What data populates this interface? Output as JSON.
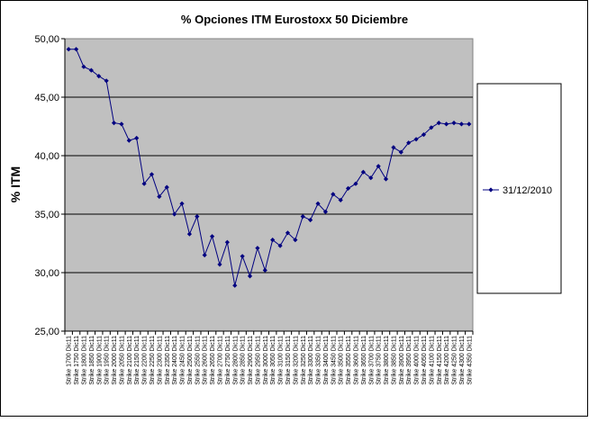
{
  "chart_data": {
    "type": "line",
    "title": "%  Opciones ITM Eurostoxx 50 Diciembre",
    "ylabel": "% ITM",
    "xlabel": "",
    "ylim": [
      25,
      50
    ],
    "yticks": [
      "50,00",
      "45,00",
      "40,00",
      "35,00",
      "30,00",
      "25,00"
    ],
    "grid": true,
    "legend_position": "right",
    "colors": {
      "plot_background": "#c0c0c0",
      "series": "#000080",
      "gridline": "#000000",
      "chart_border": "#000000"
    },
    "categories": [
      "Strike 1700 Dic11",
      "Strike 1750 Dic11",
      "Strike 1800 Dic11",
      "Strike 1850 Dic11",
      "Strike 1900 Dic11",
      "Strike 1950 Dic11",
      "Strike 2000 Dic11",
      "Strike 2050 Dic11",
      "Strike 2100 Dic11",
      "Strike 2150 Dic11",
      "Strike 2200 Dic11",
      "Strike 2250 Dic11",
      "Strike 2300 Dic11",
      "Strike 2350 Dic11",
      "Strike 2400 Dic11",
      "Strike 2450 Dic11",
      "Strike 2500 Dic11",
      "Strike 2550 Dic11",
      "Strike 2600 Dic11",
      "Strike 2650 Dic11",
      "Strike 2700 Dic11",
      "Strike 2750 Dic11",
      "Strike 2800 Dic11",
      "Strike 2850 Dic11",
      "Strike 2900 Dic11",
      "Strike 2950 Dic11",
      "Strike 3000 Dic11",
      "Strike 3050 Dic11",
      "Strike 3100 Dic11",
      "Strike 3150 Dic11",
      "Strike 3200 Dic11",
      "Strike 3250 Dic11",
      "Strike 3300 Dic11",
      "Strike 3350 Dic11",
      "Strike 3400 Dic11",
      "Strike 3450 Dic11",
      "Strike 3500 Dic11",
      "Strike 3550 Dic11",
      "Strike 3600 Dic11",
      "Strike 3650 Dic11",
      "Strike 3700 Dic11",
      "Strike 3750 Dic11",
      "Strike 3800 Dic11",
      "Strike 3850 Dic11",
      "Strike 3900 Dic11",
      "Strike 3950 Dic11",
      "Strike 4000 Dic11",
      "Strike 4050 Dic11",
      "Strike 4100 Dic11",
      "Strike 4150 Dic11",
      "Strike 4200 Dic11",
      "Strike 4250 Dic11",
      "Strike 4300 Dic11",
      "Strike 4350 Dic11"
    ],
    "series": [
      {
        "name": "31/12/2010",
        "values": [
          49.1,
          49.1,
          47.6,
          47.3,
          46.8,
          46.4,
          42.8,
          42.7,
          41.3,
          41.5,
          37.6,
          38.4,
          36.5,
          37.3,
          35.0,
          35.9,
          33.3,
          34.8,
          31.5,
          33.1,
          30.7,
          32.6,
          28.9,
          31.4,
          29.7,
          32.1,
          30.2,
          32.8,
          32.3,
          33.4,
          32.8,
          34.8,
          34.5,
          35.9,
          35.2,
          36.7,
          36.2,
          37.2,
          37.6,
          38.6,
          38.1,
          39.1,
          38.0,
          40.7,
          40.3,
          41.1,
          41.4,
          41.8,
          42.4,
          42.8,
          42.7,
          42.8,
          42.7,
          42.7
        ]
      }
    ]
  }
}
